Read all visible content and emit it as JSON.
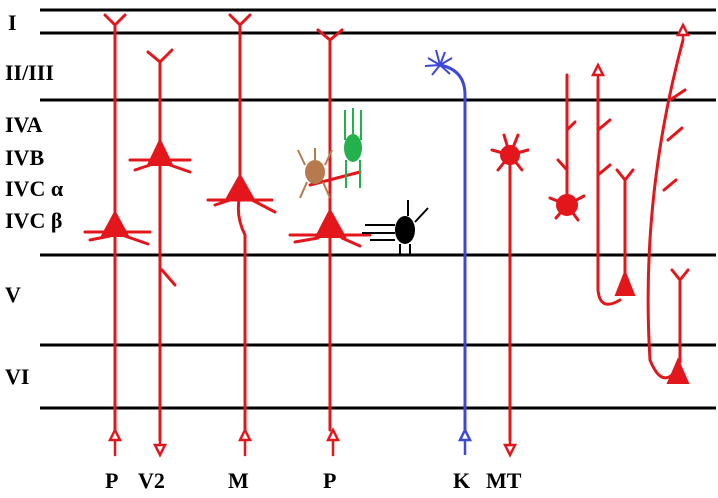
{
  "layers": [
    "I",
    "II/III",
    "IVA",
    "IVB",
    "IVC α",
    "IVC β",
    "V",
    "VI"
  ],
  "outputs": [
    "P",
    "V2",
    "M",
    "P",
    "K",
    "MT"
  ]
}
